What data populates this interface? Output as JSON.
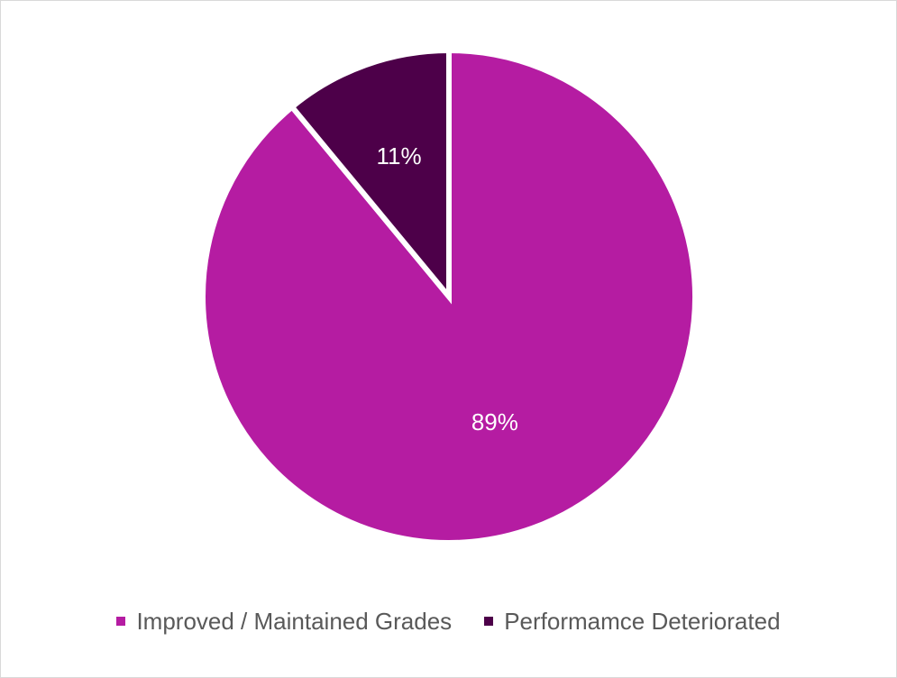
{
  "chart_data": {
    "type": "pie",
    "title": "",
    "categories": [
      "Improved / Maintained Grades",
      "Performamce Deteriorated"
    ],
    "values": [
      89,
      11
    ],
    "data_labels": [
      "89%",
      "11%"
    ],
    "colors": [
      "#b51ca2",
      "#4d0049"
    ],
    "start_angle_deg": 0,
    "direction": "clockwise",
    "legend_position": "bottom",
    "slice_border_color": "#ffffff"
  },
  "legend": {
    "items": [
      {
        "label": "Improved / Maintained Grades",
        "color": "#b51ca2"
      },
      {
        "label": "Performamce Deteriorated",
        "color": "#4d0049"
      }
    ]
  }
}
